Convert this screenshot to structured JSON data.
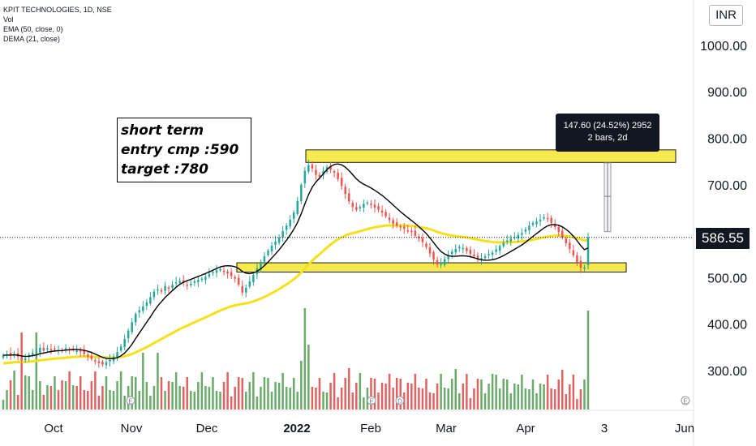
{
  "legend": {
    "symbol": "KPIT TECHNOLOGIES, 1D, NSE",
    "volume": "Vol",
    "ema": "EMA (50, close, 0)",
    "dema": "DEMA (21, close)"
  },
  "currency": "INR",
  "last_price": "586.55",
  "note": {
    "line1": "short term",
    "line2": "entry cmp :590",
    "line3": "target  :780"
  },
  "measure": {
    "line1": "147.60 (24.52%) 2952",
    "line2": "2 bars, 2d"
  },
  "colors": {
    "up": "#26a69a",
    "down": "#ef5350",
    "vol_up": "#6aaa6a",
    "vol_down": "#e06262",
    "ema": "#f5e11b",
    "dema": "#000000",
    "zone_fill": "#f7ea4e",
    "background": "#ffffff",
    "axis_text": "#131722"
  },
  "chart_data": {
    "type": "candlestick",
    "y_axis": {
      "ticks": [
        1000,
        900,
        800,
        700,
        500,
        400,
        300
      ],
      "tick_labels": [
        "1000.00",
        "900.00",
        "800.00",
        "700.00",
        "500.00",
        "400.00",
        "300.00"
      ],
      "range": [
        210,
        1080
      ]
    },
    "x_axis": {
      "labels": [
        "Oct",
        "Nov",
        "Dec",
        "2022",
        "Feb",
        "Mar",
        "Apr",
        "3",
        "Jun"
      ]
    },
    "zones": [
      {
        "label": "resistance",
        "low": 748,
        "high": 775
      },
      {
        "label": "support",
        "low": 512,
        "high": 532
      }
    ],
    "measure": {
      "from": 599,
      "to": 747
    },
    "current_price": 586.55,
    "price_series_closes": [
      333,
      335,
      333,
      336,
      330,
      323,
      326,
      334,
      338,
      342,
      349,
      343,
      348,
      346,
      346,
      344,
      342,
      348,
      345,
      346,
      343,
      341,
      336,
      330,
      325,
      320,
      316,
      313,
      318,
      323,
      330,
      340,
      352,
      368,
      386,
      404,
      422,
      430,
      438,
      447,
      458,
      470,
      475,
      470,
      482,
      478,
      485,
      490,
      493,
      488,
      484,
      487,
      492,
      495,
      498,
      502,
      508,
      512,
      516,
      518,
      513,
      509,
      503,
      498,
      485,
      468,
      478,
      492,
      506,
      520,
      534,
      546,
      558,
      569,
      578,
      586,
      600,
      612,
      625,
      640,
      665,
      700,
      730,
      742,
      735,
      721,
      717,
      729,
      738,
      732,
      726,
      712,
      697,
      680,
      664,
      652,
      646,
      652,
      659,
      662,
      657,
      651,
      646,
      640,
      632,
      624,
      616,
      612,
      608,
      605,
      601,
      598,
      590,
      584,
      576,
      566,
      552,
      539,
      528,
      530,
      540,
      548,
      556,
      562,
      566,
      564,
      557,
      551,
      546,
      541,
      542,
      546,
      551,
      554,
      561,
      568,
      575,
      580,
      584,
      587,
      592,
      596,
      604,
      612,
      618,
      621,
      625,
      630,
      627,
      618,
      609,
      598,
      586,
      574,
      562,
      548,
      533,
      521,
      522,
      587
    ],
    "volume_note": "volume bars shown at bottom; tallest bars near start of 2022 and final bar"
  }
}
